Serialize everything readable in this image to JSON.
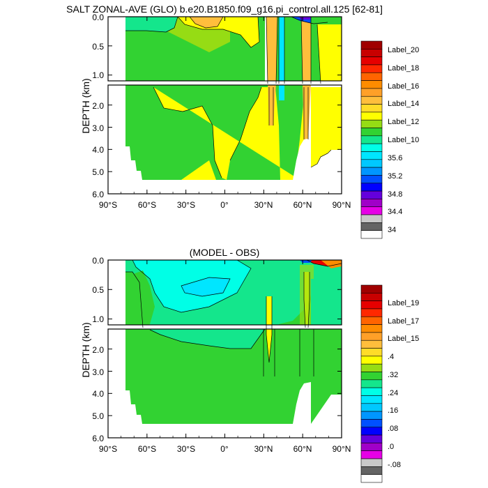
{
  "chart_data": [
    {
      "type": "contour",
      "title": "SALT ZONAL-AVE (GLO) b.e20.B1850.f09_g16.pi_control.all.125 [62-81]",
      "ylabel": "DEPTH (km)",
      "xlabel": "",
      "x_ticks": [
        "90°S",
        "60°S",
        "30°S",
        "0°",
        "30°N",
        "60°N",
        "90°N"
      ],
      "y_ticks_upper": [
        "0.0",
        "0.5",
        "1.0"
      ],
      "y_ticks_lower": [
        "2.0",
        "3.0",
        "4.0",
        "5.0",
        "6.0"
      ],
      "xlim": [
        -90,
        90
      ],
      "ylim_upper_km": [
        0,
        1.1
      ],
      "ylim_lower_km": [
        1.1,
        6.0
      ],
      "colorbar_labels": [
        "Label_20",
        "Label_18",
        "Label_16",
        "Label_14",
        "Label_12",
        "Label_10",
        "35.6",
        "35.2",
        "34.8",
        "34.4",
        "34"
      ],
      "colorbar_colors": [
        "#a00000",
        "#c80000",
        "#e60000",
        "#ff2800",
        "#ff6400",
        "#ff8c00",
        "#ffa028",
        "#ffbe3c",
        "#ffdc28",
        "#ffff00",
        "#96dc14",
        "#32d232",
        "#14e68c",
        "#00ffe6",
        "#00e6ff",
        "#00c8ff",
        "#0096ff",
        "#0050ff",
        "#0000ff",
        "#6400dc",
        "#a000c8",
        "#e600e6",
        "#c8c8c8",
        "#646464",
        "#ffffff"
      ]
    },
    {
      "type": "contour",
      "title": "(MODEL - OBS)",
      "ylabel": "DEPTH (km)",
      "xlabel": "",
      "x_ticks": [
        "90°S",
        "60°S",
        "30°S",
        "0°",
        "30°N",
        "60°N",
        "90°N"
      ],
      "y_ticks_upper": [
        "0.0",
        "0.5",
        "1.0"
      ],
      "y_ticks_lower": [
        "2.0",
        "3.0",
        "4.0",
        "5.0",
        "6.0"
      ],
      "xlim": [
        -90,
        90
      ],
      "ylim_upper_km": [
        0,
        1.1
      ],
      "ylim_lower_km": [
        1.1,
        6.0
      ],
      "colorbar_labels": [
        "Label_19",
        "Label_17",
        "Label_15",
        ".4",
        ".32",
        ".24",
        ".16",
        ".08",
        ".0",
        "-.08"
      ],
      "colorbar_colors": [
        "#a00000",
        "#c80000",
        "#e60000",
        "#ff2800",
        "#ff6400",
        "#ff8c00",
        "#ffa028",
        "#ffbe3c",
        "#ffdc28",
        "#ffff00",
        "#96dc14",
        "#32d232",
        "#14e68c",
        "#00ffe6",
        "#00e6ff",
        "#00c8ff",
        "#0096ff",
        "#0050ff",
        "#0000ff",
        "#6400dc",
        "#a000c8",
        "#e600e6",
        "#c8c8c8",
        "#646464",
        "#ffffff"
      ]
    }
  ],
  "colors": {
    "green": "#32d232",
    "yellow": "#ffff00",
    "orange": "#ffbe3c",
    "cyan": "#00ffe6",
    "teal": "#14e68c",
    "lightblue": "#00e6ff"
  }
}
